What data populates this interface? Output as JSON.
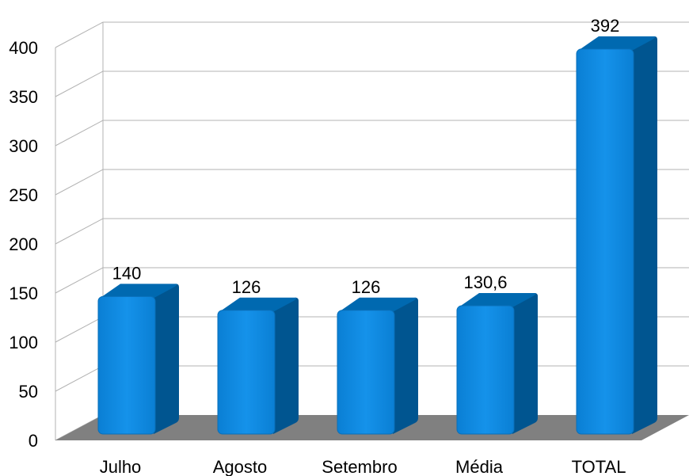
{
  "chart_data": {
    "type": "bar",
    "categories": [
      "Julho",
      "Agosto",
      "Setembro",
      "Média",
      "TOTAL"
    ],
    "values": [
      140,
      126,
      126,
      130.6,
      392
    ],
    "data_labels": [
      "140",
      "126",
      "126",
      "130,6",
      "392"
    ],
    "y_ticks": [
      0,
      50,
      100,
      150,
      200,
      250,
      300,
      350,
      400
    ],
    "ylim": [
      0,
      400
    ],
    "grid": true,
    "legend": "none",
    "style": "3d",
    "colors": {
      "bar_front": "#0a86dd",
      "bar_side": "#005590",
      "bar_top": "#0069b0",
      "floor": "#808080",
      "grid": "#b3b3b3"
    }
  }
}
